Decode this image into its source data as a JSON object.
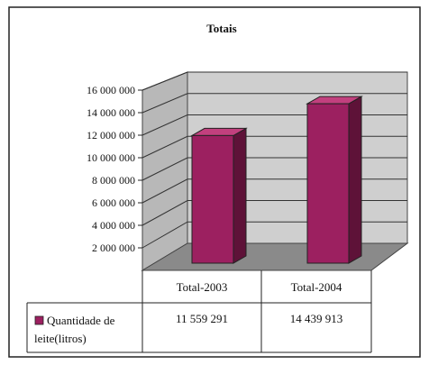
{
  "chart_data": {
    "type": "bar",
    "title": "Totais",
    "categories": [
      "Total-2003",
      "Total-2004"
    ],
    "series": [
      {
        "name": "Quantidade de leite(litros)",
        "values": [
          11559291,
          14439913
        ]
      }
    ],
    "value_labels": [
      "11 559 291",
      "14 439 913"
    ],
    "ylim": [
      0,
      16000000
    ],
    "yticks": [
      2000000,
      4000000,
      6000000,
      8000000,
      10000000,
      12000000,
      14000000,
      16000000
    ],
    "ytick_labels": [
      "2 000 000",
      "4 000 000",
      "6 000 000",
      "8 000 000",
      "10 000 000",
      "12 000 000",
      "14 000 000",
      "16 000 000"
    ],
    "grid": true,
    "legend": "data-table",
    "three_d": true,
    "colors": {
      "bar": "#9c2060",
      "bar_top": "#c2407e",
      "bar_side": "#5e1238",
      "wall": "#cfcfcf",
      "floor": "#8a8a8a"
    }
  }
}
